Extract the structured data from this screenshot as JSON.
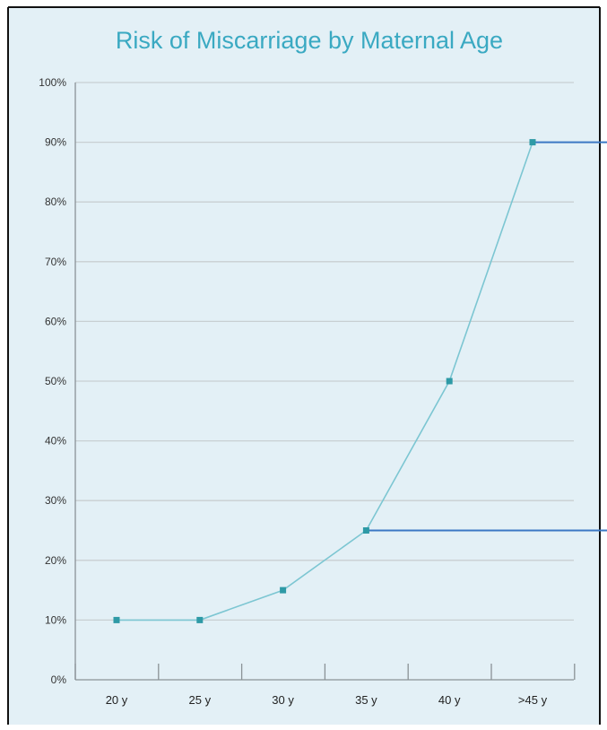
{
  "chart_data": {
    "type": "line",
    "title": "Risk of Miscarriage by Maternal Age",
    "xlabel": "",
    "ylabel": "",
    "categories": [
      "20 y",
      "25 y",
      "30 y",
      "35 y",
      "40 y",
      ">45 y"
    ],
    "series": [
      {
        "values": [
          10,
          10,
          15,
          25,
          50,
          90
        ]
      }
    ],
    "y_ticks": [
      "0%",
      "10%",
      "20%",
      "30%",
      "40%",
      "50%",
      "60%",
      "70%",
      "80%",
      "90%",
      "100%"
    ],
    "ylim": [
      0,
      100
    ],
    "grid": true,
    "legend": "none",
    "highlight_lines": [
      25,
      90
    ],
    "colors": {
      "title": "#3aa9c2",
      "line": "#7cc6d2",
      "marker": "#2e9aa6",
      "grid": "#c8cfd2",
      "background": "#e3f0f6",
      "highlight": "#3b78c4"
    }
  }
}
